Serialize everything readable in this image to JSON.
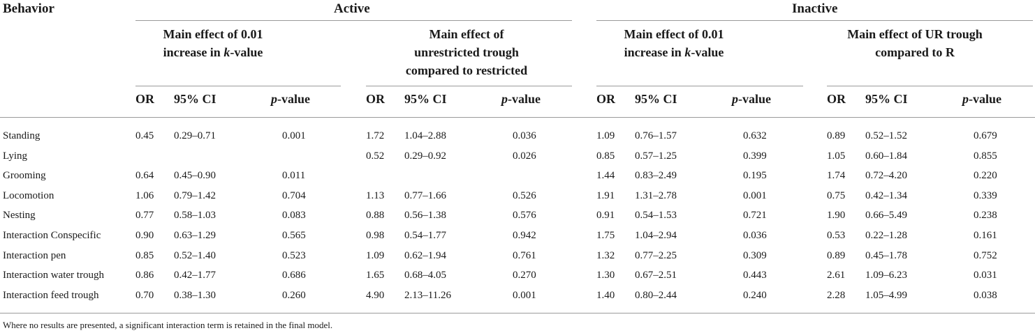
{
  "headers": {
    "behavior": "Behavior",
    "active": "Active",
    "inactive": "Inactive",
    "groups": [
      {
        "lines": [
          "Main effect of 0.01",
          "increase in ",
          "k",
          "-value"
        ]
      },
      {
        "lines": [
          "Main effect of",
          "unrestricted trough",
          "compared to restricted"
        ]
      },
      {
        "lines": [
          "Main effect of 0.01",
          "increase in ",
          "k",
          "-value"
        ]
      },
      {
        "lines": [
          "Main effect of UR trough",
          "compared to R"
        ]
      }
    ],
    "col_or": "OR",
    "col_ci": "95% CI",
    "col_p_italic": "p",
    "col_p_rest": "-value"
  },
  "rows": [
    {
      "behavior": "Standing",
      "cells": [
        "0.45",
        "0.29–0.71",
        "0.001",
        "1.72",
        "1.04–2.88",
        "0.036",
        "1.09",
        "0.76–1.57",
        "0.632",
        "0.89",
        "0.52–1.52",
        "0.679"
      ]
    },
    {
      "behavior": "Lying",
      "cells": [
        "",
        "",
        "",
        "0.52",
        "0.29–0.92",
        "0.026",
        "0.85",
        "0.57–1.25",
        "0.399",
        "1.05",
        "0.60–1.84",
        "0.855"
      ]
    },
    {
      "behavior": "Grooming",
      "cells": [
        "0.64",
        "0.45–0.90",
        "0.011",
        "",
        "",
        "",
        "1.44",
        "0.83–2.49",
        "0.195",
        "1.74",
        "0.72–4.20",
        "0.220"
      ]
    },
    {
      "behavior": "Locomotion",
      "cells": [
        "1.06",
        "0.79–1.42",
        "0.704",
        "1.13",
        "0.77–1.66",
        "0.526",
        "1.91",
        "1.31–2.78",
        "0.001",
        "0.75",
        "0.42–1.34",
        "0.339"
      ]
    },
    {
      "behavior": "Nesting",
      "cells": [
        "0.77",
        "0.58–1.03",
        "0.083",
        "0.88",
        "0.56–1.38",
        "0.576",
        "0.91",
        "0.54–1.53",
        "0.721",
        "1.90",
        "0.66–5.49",
        "0.238"
      ]
    },
    {
      "behavior": "Interaction Conspecific",
      "cells": [
        "0.90",
        "0.63–1.29",
        "0.565",
        "0.98",
        "0.54–1.77",
        "0.942",
        "1.75",
        "1.04–2.94",
        "0.036",
        "0.53",
        "0.22–1.28",
        "0.161"
      ]
    },
    {
      "behavior": "Interaction pen",
      "cells": [
        "0.85",
        "0.52–1.40",
        "0.523",
        "1.09",
        "0.62–1.94",
        "0.761",
        "1.32",
        "0.77–2.25",
        "0.309",
        "0.89",
        "0.45–1.78",
        "0.752"
      ]
    },
    {
      "behavior": "Interaction water trough",
      "cells": [
        "0.86",
        "0.42–1.77",
        "0.686",
        "1.65",
        "0.68–4.05",
        "0.270",
        "1.30",
        "0.67–2.51",
        "0.443",
        "2.61",
        "1.09–6.23",
        "0.031"
      ]
    },
    {
      "behavior": "Interaction feed trough",
      "cells": [
        "0.70",
        "0.38–1.30",
        "0.260",
        "4.90",
        "2.13–11.26",
        "0.001",
        "1.40",
        "0.80–2.44",
        "0.240",
        "2.28",
        "1.05–4.99",
        "0.038"
      ]
    }
  ],
  "footnote": "Where no results are presented, a significant interaction term is retained in the final model."
}
